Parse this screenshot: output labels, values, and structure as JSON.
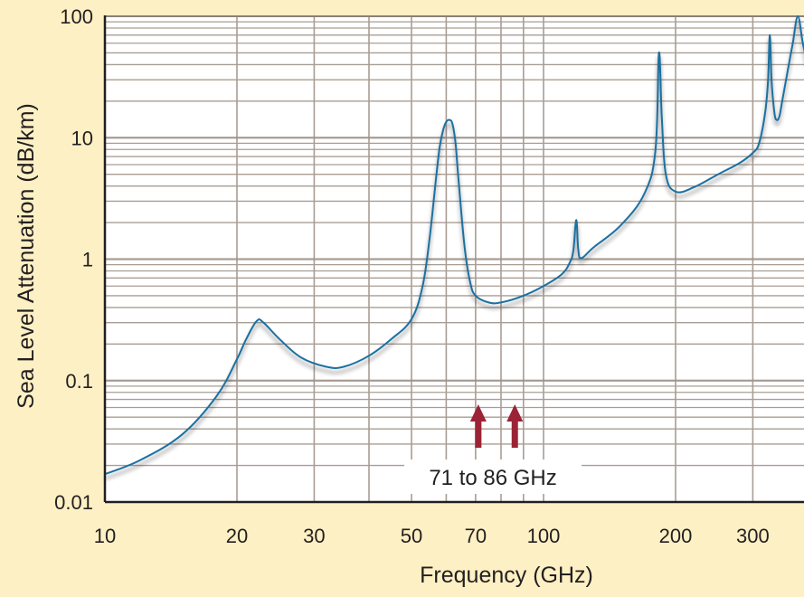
{
  "chart_data": {
    "type": "line",
    "title": "",
    "xlabel": "Frequency (GHz)",
    "ylabel": "Sea Level Attenuation (dB/km)",
    "x_scale": "log",
    "y_scale": "log",
    "xlim": [
      10,
      400
    ],
    "ylim": [
      0.01,
      100
    ],
    "grid": true,
    "legend": "none",
    "x_ticks": [
      "10",
      "20",
      "30",
      "50",
      "70",
      "100",
      "200",
      "300"
    ],
    "y_ticks": [
      "0.01",
      "0.1",
      "1",
      "10",
      "100"
    ],
    "series": [
      {
        "color": "#1a6fa0",
        "x": [
          10,
          12,
          15,
          18,
          20,
          21,
          22.2,
          23,
          25,
          28,
          32,
          35,
          40,
          45,
          50,
          53,
          55,
          57,
          58,
          59,
          60,
          61,
          62,
          63,
          64,
          66,
          68,
          70,
          75,
          80,
          90,
          100,
          110,
          115,
          117,
          118.75,
          120,
          122,
          130,
          150,
          170,
          180,
          183.3,
          186,
          190,
          200,
          220,
          250,
          280,
          300,
          310,
          320,
          325,
          328,
          331,
          336,
          340,
          345,
          350,
          360,
          370,
          380,
          390,
          400
        ],
        "y": [
          0.017,
          0.022,
          0.036,
          0.075,
          0.15,
          0.22,
          0.31,
          0.3,
          0.22,
          0.155,
          0.13,
          0.13,
          0.16,
          0.22,
          0.32,
          0.6,
          1.5,
          5.0,
          8.5,
          11.5,
          13.5,
          14.0,
          13.0,
          9.0,
          4.5,
          1.3,
          0.65,
          0.5,
          0.44,
          0.44,
          0.5,
          0.6,
          0.75,
          0.95,
          1.2,
          2.1,
          1.2,
          1.02,
          1.25,
          1.9,
          3.5,
          8.0,
          50.0,
          15.0,
          5.0,
          3.6,
          3.9,
          5.0,
          6.2,
          7.5,
          9.0,
          16.0,
          30.0,
          70.0,
          30.0,
          16.0,
          14.0,
          15.0,
          20.0,
          35.0,
          60.0,
          100.0,
          60.0,
          40.0
        ]
      }
    ],
    "annotations": [
      {
        "text": "71 to 86 GHz",
        "arrows_at_x": [
          71,
          86
        ],
        "arrow_color": "#9b2335"
      }
    ]
  }
}
